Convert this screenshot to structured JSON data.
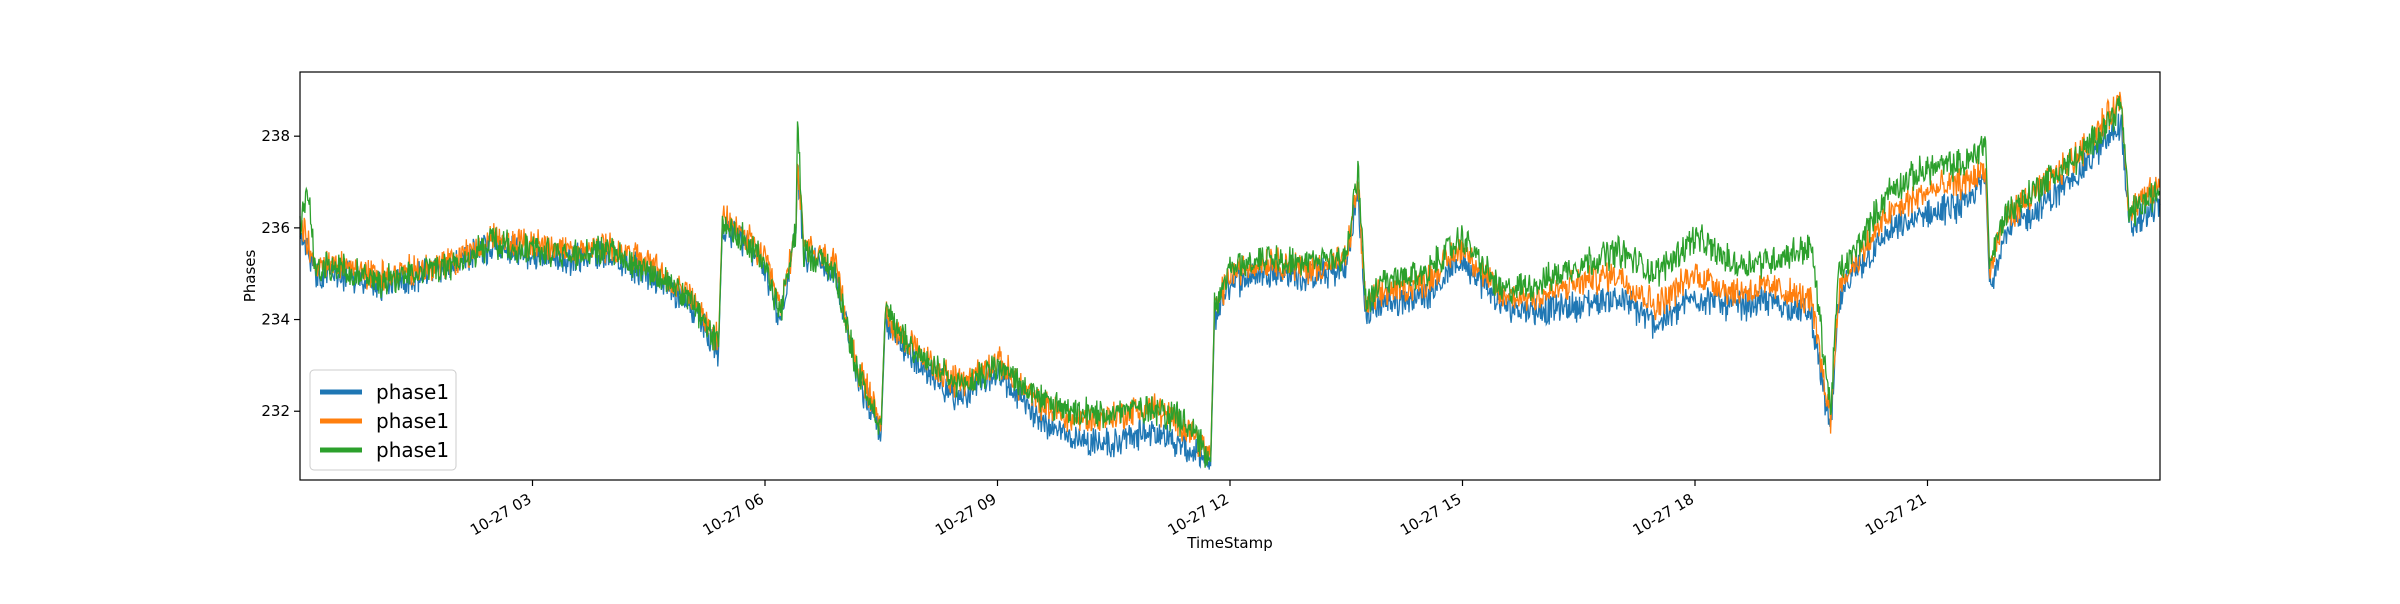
{
  "chart_data": {
    "type": "line",
    "title": "",
    "xlabel": "TimeStamp",
    "ylabel": "Phases",
    "x_range": [
      "10-27 00:00",
      "10-27 24:00"
    ],
    "ylim": [
      230.5,
      239.4
    ],
    "x_ticks": [
      {
        "label": "10-27 03",
        "hour": 3
      },
      {
        "label": "10-27 06",
        "hour": 6
      },
      {
        "label": "10-27 09",
        "hour": 9
      },
      {
        "label": "10-27 12",
        "hour": 12
      },
      {
        "label": "10-27 15",
        "hour": 15
      },
      {
        "label": "10-27 18",
        "hour": 18
      },
      {
        "label": "10-27 21",
        "hour": 21
      }
    ],
    "y_ticks": [
      232,
      234,
      236,
      238
    ],
    "grid": false,
    "legend_position": "lower-left",
    "series": [
      {
        "name": "phase1",
        "color": "#1f77b4",
        "points": [
          [
            0.0,
            236.0
          ],
          [
            0.2,
            235.0
          ],
          [
            0.5,
            235.0
          ],
          [
            1.0,
            234.7
          ],
          [
            1.5,
            234.9
          ],
          [
            2.0,
            235.2
          ],
          [
            2.5,
            235.6
          ],
          [
            3.0,
            235.4
          ],
          [
            3.5,
            235.3
          ],
          [
            4.0,
            235.4
          ],
          [
            4.5,
            235.0
          ],
          [
            5.0,
            234.4
          ],
          [
            5.4,
            233.3
          ],
          [
            5.45,
            236.0
          ],
          [
            5.7,
            235.7
          ],
          [
            6.0,
            235.1
          ],
          [
            6.2,
            234.0
          ],
          [
            6.4,
            235.9
          ],
          [
            6.42,
            237.3
          ],
          [
            6.5,
            235.4
          ],
          [
            6.9,
            235.0
          ],
          [
            7.0,
            234.2
          ],
          [
            7.2,
            232.7
          ],
          [
            7.5,
            231.6
          ],
          [
            7.55,
            233.9
          ],
          [
            8.0,
            233.0
          ],
          [
            8.5,
            232.3
          ],
          [
            9.0,
            232.8
          ],
          [
            9.5,
            231.9
          ],
          [
            10.0,
            231.4
          ],
          [
            10.5,
            231.3
          ],
          [
            11.0,
            231.6
          ],
          [
            11.5,
            231.1
          ],
          [
            11.75,
            230.8
          ],
          [
            11.8,
            234.0
          ],
          [
            12.0,
            234.8
          ],
          [
            12.5,
            235.1
          ],
          [
            13.0,
            234.9
          ],
          [
            13.5,
            235.1
          ],
          [
            13.65,
            236.8
          ],
          [
            13.75,
            234.1
          ],
          [
            14.0,
            234.4
          ],
          [
            14.5,
            234.5
          ],
          [
            15.0,
            235.3
          ],
          [
            15.5,
            234.3
          ],
          [
            16.0,
            234.2
          ],
          [
            16.5,
            234.3
          ],
          [
            17.0,
            234.5
          ],
          [
            17.5,
            233.9
          ],
          [
            18.0,
            234.5
          ],
          [
            18.5,
            234.3
          ],
          [
            19.0,
            234.4
          ],
          [
            19.5,
            234.1
          ],
          [
            19.75,
            231.5
          ],
          [
            19.85,
            234.3
          ],
          [
            20.0,
            234.9
          ],
          [
            20.5,
            235.9
          ],
          [
            21.0,
            236.3
          ],
          [
            21.5,
            236.5
          ],
          [
            21.75,
            237.1
          ],
          [
            21.8,
            234.7
          ],
          [
            22.0,
            235.9
          ],
          [
            22.5,
            236.5
          ],
          [
            23.0,
            237.3
          ],
          [
            23.5,
            238.3
          ],
          [
            23.6,
            236.0
          ],
          [
            24.0,
            236.5
          ]
        ]
      },
      {
        "name": "phase1",
        "color": "#ff7f0e",
        "points": [
          [
            0.0,
            236.2
          ],
          [
            0.2,
            235.2
          ],
          [
            0.5,
            235.2
          ],
          [
            1.0,
            234.9
          ],
          [
            1.5,
            235.1
          ],
          [
            2.0,
            235.3
          ],
          [
            2.5,
            235.8
          ],
          [
            3.0,
            235.6
          ],
          [
            3.5,
            235.5
          ],
          [
            4.0,
            235.6
          ],
          [
            4.5,
            235.2
          ],
          [
            5.0,
            234.6
          ],
          [
            5.4,
            233.5
          ],
          [
            5.45,
            236.2
          ],
          [
            5.7,
            235.9
          ],
          [
            6.0,
            235.3
          ],
          [
            6.2,
            234.2
          ],
          [
            6.4,
            236.0
          ],
          [
            6.42,
            237.5
          ],
          [
            6.5,
            235.6
          ],
          [
            6.9,
            235.2
          ],
          [
            7.0,
            234.4
          ],
          [
            7.2,
            232.9
          ],
          [
            7.5,
            231.8
          ],
          [
            7.55,
            234.1
          ],
          [
            8.0,
            233.2
          ],
          [
            8.5,
            232.6
          ],
          [
            9.0,
            233.1
          ],
          [
            9.5,
            232.2
          ],
          [
            10.0,
            231.8
          ],
          [
            10.5,
            231.9
          ],
          [
            11.0,
            232.1
          ],
          [
            11.5,
            231.6
          ],
          [
            11.75,
            231.0
          ],
          [
            11.8,
            234.2
          ],
          [
            12.0,
            235.0
          ],
          [
            12.5,
            235.3
          ],
          [
            13.0,
            235.1
          ],
          [
            13.5,
            235.3
          ],
          [
            13.65,
            237.0
          ],
          [
            13.75,
            234.3
          ],
          [
            14.0,
            234.6
          ],
          [
            14.5,
            234.8
          ],
          [
            15.0,
            235.6
          ],
          [
            15.5,
            234.5
          ],
          [
            16.0,
            234.5
          ],
          [
            16.5,
            234.8
          ],
          [
            17.0,
            235.0
          ],
          [
            17.5,
            234.3
          ],
          [
            18.0,
            235.0
          ],
          [
            18.5,
            234.6
          ],
          [
            19.0,
            234.7
          ],
          [
            19.5,
            234.4
          ],
          [
            19.75,
            231.8
          ],
          [
            19.85,
            234.6
          ],
          [
            20.0,
            235.1
          ],
          [
            20.5,
            236.3
          ],
          [
            21.0,
            236.8
          ],
          [
            21.5,
            237.0
          ],
          [
            21.75,
            237.3
          ],
          [
            21.8,
            235.0
          ],
          [
            22.0,
            236.2
          ],
          [
            22.5,
            236.9
          ],
          [
            23.0,
            237.7
          ],
          [
            23.5,
            238.8
          ],
          [
            23.6,
            236.4
          ],
          [
            24.0,
            236.9
          ]
        ]
      },
      {
        "name": "phase1",
        "color": "#2ca02c",
        "points": [
          [
            0.0,
            236.1
          ],
          [
            0.1,
            236.8
          ],
          [
            0.2,
            235.1
          ],
          [
            0.5,
            235.1
          ],
          [
            1.0,
            234.8
          ],
          [
            1.5,
            235.0
          ],
          [
            2.0,
            235.2
          ],
          [
            2.5,
            235.7
          ],
          [
            3.0,
            235.5
          ],
          [
            3.5,
            235.4
          ],
          [
            4.0,
            235.5
          ],
          [
            4.5,
            235.1
          ],
          [
            5.0,
            234.5
          ],
          [
            5.4,
            233.4
          ],
          [
            5.45,
            236.1
          ],
          [
            5.7,
            235.8
          ],
          [
            6.0,
            235.2
          ],
          [
            6.2,
            234.1
          ],
          [
            6.4,
            236.0
          ],
          [
            6.42,
            238.4
          ],
          [
            6.5,
            235.5
          ],
          [
            6.9,
            235.1
          ],
          [
            7.0,
            234.3
          ],
          [
            7.2,
            232.8
          ],
          [
            7.5,
            231.7
          ],
          [
            7.55,
            234.2
          ],
          [
            8.0,
            233.2
          ],
          [
            8.5,
            232.5
          ],
          [
            9.0,
            233.0
          ],
          [
            9.5,
            232.3
          ],
          [
            10.0,
            231.9
          ],
          [
            10.5,
            232.0
          ],
          [
            11.0,
            232.1
          ],
          [
            11.5,
            231.7
          ],
          [
            11.75,
            230.9
          ],
          [
            11.8,
            234.3
          ],
          [
            12.0,
            235.1
          ],
          [
            12.5,
            235.4
          ],
          [
            13.0,
            235.2
          ],
          [
            13.5,
            235.4
          ],
          [
            13.65,
            237.3
          ],
          [
            13.75,
            234.4
          ],
          [
            14.0,
            234.8
          ],
          [
            14.5,
            235.0
          ],
          [
            15.0,
            235.8
          ],
          [
            15.5,
            234.6
          ],
          [
            16.0,
            234.8
          ],
          [
            16.5,
            235.2
          ],
          [
            17.0,
            235.5
          ],
          [
            17.5,
            235.0
          ],
          [
            18.0,
            235.8
          ],
          [
            18.5,
            235.2
          ],
          [
            19.0,
            235.3
          ],
          [
            19.5,
            235.6
          ],
          [
            19.75,
            232.0
          ],
          [
            19.85,
            235.0
          ],
          [
            20.0,
            235.3
          ],
          [
            20.5,
            236.8
          ],
          [
            21.0,
            237.3
          ],
          [
            21.5,
            237.4
          ],
          [
            21.75,
            237.9
          ],
          [
            21.8,
            235.2
          ],
          [
            22.0,
            236.3
          ],
          [
            22.5,
            237.0
          ],
          [
            23.0,
            237.6
          ],
          [
            23.5,
            238.7
          ],
          [
            23.6,
            236.3
          ],
          [
            24.0,
            236.8
          ]
        ]
      }
    ]
  }
}
